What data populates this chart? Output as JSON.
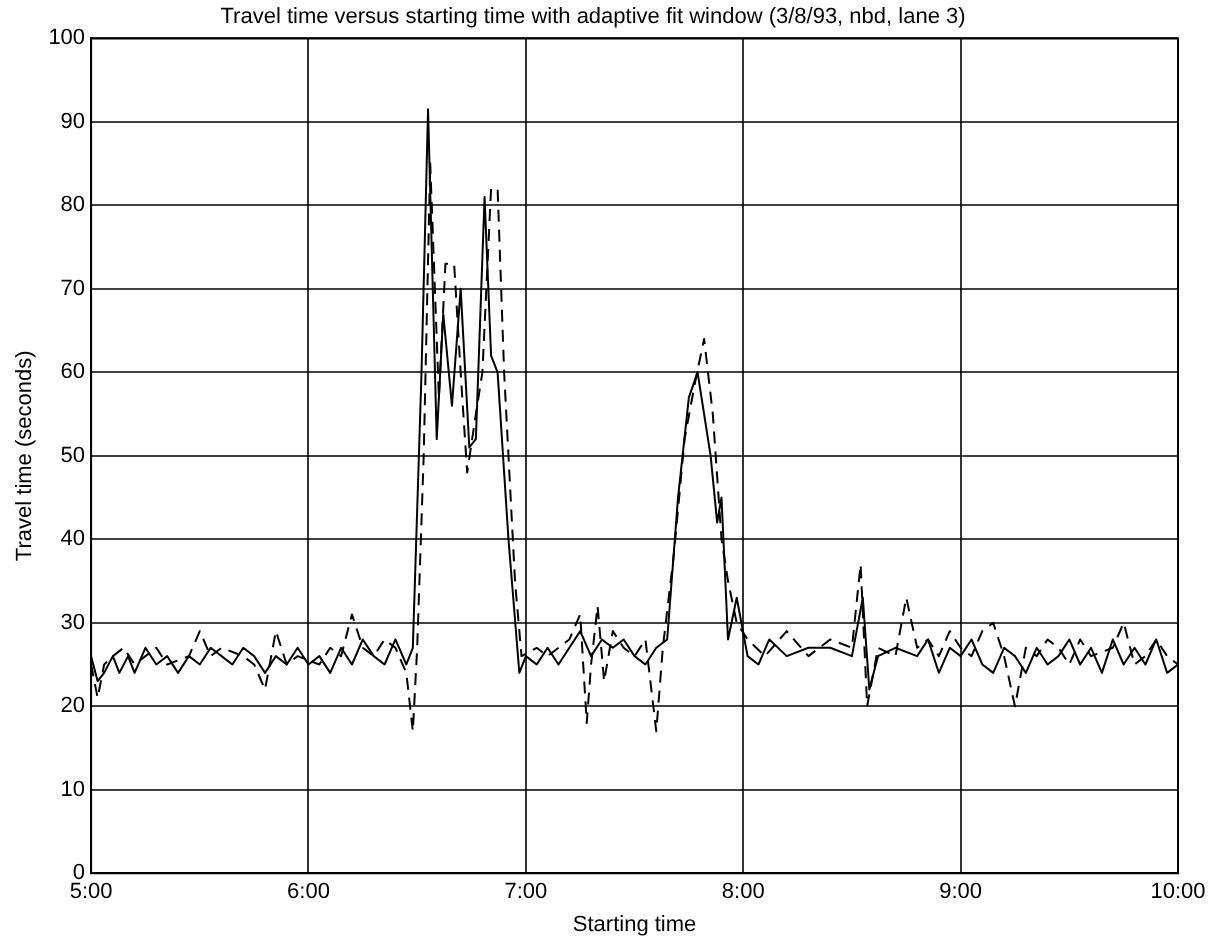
{
  "chart_data": {
    "type": "line",
    "title": "Travel time versus starting time with adaptive fit window (3/8/93, nbd, lane 3)",
    "xlabel": "Starting time",
    "ylabel": "Travel time (seconds)",
    "xlim": [
      5,
      10
    ],
    "xticks": [
      {
        "value": 5,
        "label": "5:00"
      },
      {
        "value": 6,
        "label": "6:00"
      },
      {
        "value": 7,
        "label": "7:00"
      },
      {
        "value": 8,
        "label": "8:00"
      },
      {
        "value": 9,
        "label": "9:00"
      },
      {
        "value": 10,
        "label": "10:00"
      }
    ],
    "ylim": [
      0,
      100
    ],
    "yticks": [
      0,
      10,
      20,
      30,
      40,
      50,
      60,
      70,
      80,
      90,
      100
    ],
    "grid": true,
    "legend": false,
    "marker": "none",
    "series": [
      {
        "color": "#000000",
        "line_style": "solid",
        "x": [
          5.0,
          5.03,
          5.06,
          5.1,
          5.13,
          5.17,
          5.2,
          5.25,
          5.3,
          5.35,
          5.4,
          5.45,
          5.5,
          5.55,
          5.6,
          5.65,
          5.7,
          5.75,
          5.8,
          5.85,
          5.9,
          5.95,
          6.0,
          6.05,
          6.1,
          6.15,
          6.2,
          6.25,
          6.3,
          6.35,
          6.4,
          6.45,
          6.48,
          6.52,
          6.55,
          6.59,
          6.62,
          6.66,
          6.7,
          6.74,
          6.77,
          6.81,
          6.84,
          6.87,
          6.92,
          6.97,
          7.0,
          7.05,
          7.1,
          7.15,
          7.2,
          7.25,
          7.3,
          7.35,
          7.4,
          7.45,
          7.5,
          7.55,
          7.6,
          7.65,
          7.7,
          7.75,
          7.79,
          7.82,
          7.85,
          7.88,
          7.9,
          7.93,
          7.97,
          8.02,
          8.07,
          8.12,
          8.2,
          8.3,
          8.4,
          8.5,
          8.55,
          8.58,
          8.62,
          8.7,
          8.8,
          8.85,
          8.9,
          8.95,
          9.0,
          9.05,
          9.1,
          9.15,
          9.2,
          9.25,
          9.3,
          9.35,
          9.4,
          9.45,
          9.5,
          9.55,
          9.6,
          9.65,
          9.7,
          9.75,
          9.8,
          9.85,
          9.9,
          9.95,
          10.0
        ],
        "values": [
          26,
          23,
          24,
          26,
          24,
          26,
          24,
          27,
          25,
          26,
          24,
          26,
          25,
          27,
          26,
          25,
          27,
          26,
          24,
          26,
          25,
          27,
          25,
          26,
          24,
          27,
          25,
          28,
          26,
          25,
          28,
          25,
          27,
          60,
          91.5,
          52,
          67,
          56,
          70,
          51,
          52,
          81,
          62,
          60,
          40,
          24,
          26,
          25,
          27,
          25,
          27,
          29,
          26,
          28,
          27,
          28,
          26,
          25,
          27,
          28,
          45,
          57,
          60,
          55,
          50,
          42,
          45,
          28,
          33,
          26,
          25,
          28,
          26,
          27,
          27,
          26,
          33,
          22,
          26,
          27,
          26,
          28,
          24,
          27,
          26,
          28,
          25,
          24,
          27,
          26,
          24,
          27,
          25,
          26,
          28,
          25,
          27,
          24,
          28,
          25,
          27,
          25,
          28,
          24,
          25
        ]
      },
      {
        "color": "#000000",
        "line_style": "dashed",
        "x": [
          5.0,
          5.03,
          5.06,
          5.1,
          5.15,
          5.2,
          5.25,
          5.3,
          5.35,
          5.45,
          5.5,
          5.55,
          5.6,
          5.7,
          5.75,
          5.8,
          5.85,
          5.9,
          5.95,
          6.05,
          6.1,
          6.15,
          6.2,
          6.25,
          6.3,
          6.35,
          6.4,
          6.45,
          6.48,
          6.5,
          6.53,
          6.56,
          6.6,
          6.63,
          6.67,
          6.7,
          6.73,
          6.77,
          6.8,
          6.84,
          6.87,
          6.9,
          6.95,
          6.98,
          7.05,
          7.1,
          7.2,
          7.25,
          7.28,
          7.3,
          7.33,
          7.36,
          7.4,
          7.45,
          7.5,
          7.55,
          7.6,
          7.63,
          7.68,
          7.73,
          7.78,
          7.82,
          7.86,
          7.9,
          7.93,
          7.97,
          8.02,
          8.1,
          8.2,
          8.3,
          8.4,
          8.5,
          8.54,
          8.57,
          8.62,
          8.7,
          8.75,
          8.8,
          8.85,
          8.9,
          8.95,
          9.0,
          9.05,
          9.1,
          9.15,
          9.2,
          9.25,
          9.3,
          9.35,
          9.4,
          9.45,
          9.5,
          9.55,
          9.6,
          9.7,
          9.75,
          9.8,
          9.85,
          9.9,
          9.95,
          10.0
        ],
        "values": [
          25,
          21,
          25,
          26,
          27,
          25,
          26,
          27,
          25,
          26,
          29,
          26,
          27,
          26,
          25,
          22,
          29,
          25,
          26,
          25,
          27,
          26,
          31,
          27,
          26,
          28,
          27,
          24,
          17,
          27,
          50,
          85,
          57,
          73,
          73,
          60,
          48,
          55,
          60,
          82,
          82,
          60,
          35,
          26,
          27,
          26,
          28,
          31,
          18,
          25,
          32,
          23,
          29,
          27,
          26,
          28,
          17,
          27,
          38,
          52,
          59,
          64,
          55,
          40,
          35,
          30,
          28,
          26,
          29,
          26,
          28,
          27,
          37,
          20,
          27,
          26,
          33,
          27,
          28,
          26,
          29,
          27,
          26,
          29,
          30,
          26,
          20,
          27,
          26,
          28,
          27,
          25,
          28,
          26,
          27,
          30,
          25,
          26,
          28,
          26,
          25
        ]
      }
    ]
  }
}
